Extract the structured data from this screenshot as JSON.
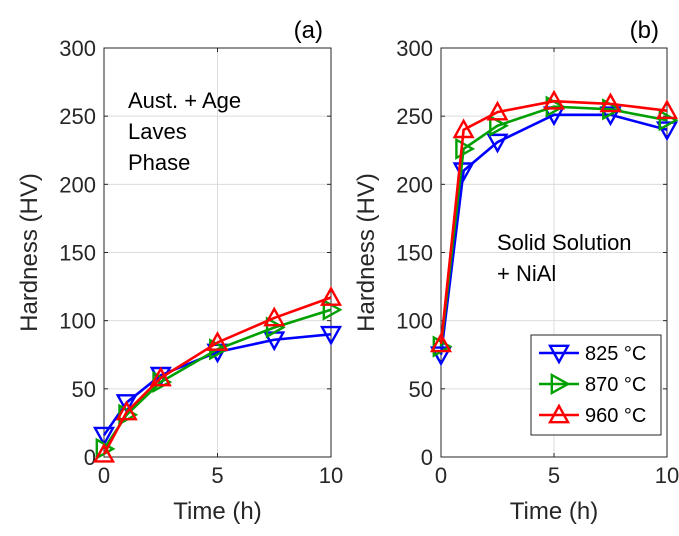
{
  "chart_data": [
    {
      "type": "line",
      "panel_label": "(a)",
      "annotation": [
        "Aust. + Age",
        "Laves",
        "Phase"
      ],
      "xlabel": "Time (h)",
      "ylabel": "Hardness (HV)",
      "xlim": [
        0,
        10
      ],
      "ylim": [
        0,
        300
      ],
      "xticks": [
        "0",
        "5",
        "10"
      ],
      "yticks": [
        "0",
        "50",
        "100",
        "150",
        "200",
        "250",
        "300"
      ],
      "grid": true,
      "x": [
        0,
        1,
        2.5,
        5,
        7.5,
        10
      ],
      "series": [
        {
          "temp": "825",
          "color": "#0000ff",
          "marker": "triangle-down",
          "values": [
            16,
            40,
            60,
            77,
            86,
            90
          ]
        },
        {
          "temp": "870",
          "color": "#00a000",
          "marker": "triangle-right",
          "values": [
            6,
            31,
            55,
            79,
            95,
            108
          ]
        },
        {
          "temp": "960",
          "color": "#ff0000",
          "marker": "triangle-up",
          "values": [
            2,
            33,
            58,
            84,
            102,
            117
          ]
        }
      ]
    },
    {
      "type": "line",
      "panel_label": "(b)",
      "annotation": [
        "Solid Solution",
        "+ NiAl"
      ],
      "xlabel": "Time (h)",
      "ylabel": "Hardness (HV)",
      "xlim": [
        0,
        10
      ],
      "ylim": [
        0,
        300
      ],
      "xticks": [
        "0",
        "5",
        "10"
      ],
      "yticks": [
        "0",
        "50",
        "100",
        "150",
        "200",
        "250",
        "300"
      ],
      "grid": true,
      "legend_position": "bottom-right",
      "x": [
        0,
        1,
        2.5,
        5,
        7.5,
        10
      ],
      "series": [
        {
          "name": "825 °C",
          "color": "#0000ff",
          "marker": "triangle-down",
          "values": [
            75,
            210,
            231,
            251,
            251,
            240
          ]
        },
        {
          "name": "870 °C",
          "color": "#00a000",
          "marker": "triangle-right",
          "values": [
            81,
            226,
            243,
            257,
            255,
            247
          ]
        },
        {
          "name": "960 °C",
          "color": "#ff0000",
          "marker": "triangle-up",
          "values": [
            83,
            240,
            253,
            261,
            259,
            254
          ]
        }
      ]
    }
  ]
}
